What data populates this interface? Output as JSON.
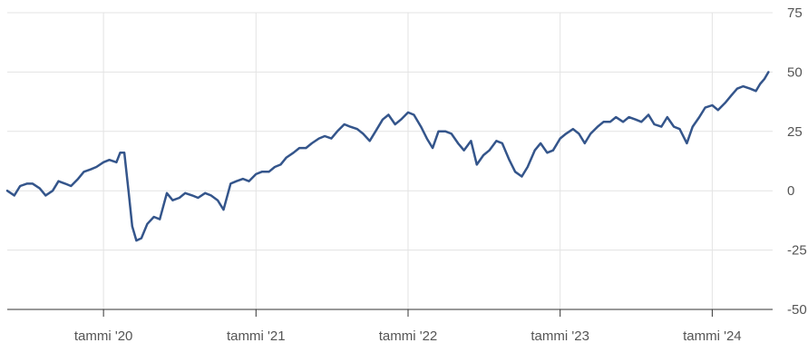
{
  "chart_data": {
    "type": "line",
    "title": "",
    "xlabel": "",
    "ylabel": "",
    "ylim": [
      -50,
      75
    ],
    "y_ticks": [
      75,
      50,
      25,
      0,
      -25,
      -50
    ],
    "y_tick_labels": [
      "75",
      "50",
      "25",
      "0",
      "-25",
      "-50"
    ],
    "y_axis_position": "right",
    "x_ticks": [
      {
        "date": "2020-01-01",
        "label": "tammi '20"
      },
      {
        "date": "2021-01-01",
        "label": "tammi '21"
      },
      {
        "date": "2022-01-01",
        "label": "tammi '22"
      },
      {
        "date": "2023-01-01",
        "label": "tammi '23"
      },
      {
        "date": "2024-01-01",
        "label": "tammi '24"
      }
    ],
    "xlim": [
      "2019-05-15",
      "2024-05-25"
    ],
    "grid": true,
    "legend": "none",
    "colors": {
      "line": "#34558b",
      "grid": "#e3e3e3",
      "axis": "#333333",
      "labels": "#555555"
    },
    "series": [
      {
        "points": [
          [
            "2019-05-15",
            0
          ],
          [
            "2019-06-01",
            -2
          ],
          [
            "2019-06-15",
            2
          ],
          [
            "2019-07-01",
            3
          ],
          [
            "2019-07-15",
            3
          ],
          [
            "2019-08-01",
            1
          ],
          [
            "2019-08-15",
            -2
          ],
          [
            "2019-09-01",
            0
          ],
          [
            "2019-09-15",
            4
          ],
          [
            "2019-10-01",
            3
          ],
          [
            "2019-10-15",
            2
          ],
          [
            "2019-11-01",
            5
          ],
          [
            "2019-11-15",
            8
          ],
          [
            "2019-12-01",
            9
          ],
          [
            "2019-12-15",
            10
          ],
          [
            "2020-01-01",
            12
          ],
          [
            "2020-01-15",
            13
          ],
          [
            "2020-02-01",
            12
          ],
          [
            "2020-02-10",
            16
          ],
          [
            "2020-02-20",
            16
          ],
          [
            "2020-03-01",
            0
          ],
          [
            "2020-03-10",
            -15
          ],
          [
            "2020-03-20",
            -21
          ],
          [
            "2020-04-01",
            -20
          ],
          [
            "2020-04-15",
            -14
          ],
          [
            "2020-05-01",
            -11
          ],
          [
            "2020-05-15",
            -12
          ],
          [
            "2020-06-01",
            -1
          ],
          [
            "2020-06-15",
            -4
          ],
          [
            "2020-07-01",
            -3
          ],
          [
            "2020-07-15",
            -1
          ],
          [
            "2020-08-01",
            -2
          ],
          [
            "2020-08-15",
            -3
          ],
          [
            "2020-09-01",
            -1
          ],
          [
            "2020-09-15",
            -2
          ],
          [
            "2020-10-01",
            -4
          ],
          [
            "2020-10-15",
            -8
          ],
          [
            "2020-11-01",
            3
          ],
          [
            "2020-11-15",
            4
          ],
          [
            "2020-12-01",
            5
          ],
          [
            "2020-12-15",
            4
          ],
          [
            "2021-01-01",
            7
          ],
          [
            "2021-01-15",
            8
          ],
          [
            "2021-02-01",
            8
          ],
          [
            "2021-02-15",
            10
          ],
          [
            "2021-03-01",
            11
          ],
          [
            "2021-03-15",
            14
          ],
          [
            "2021-04-01",
            16
          ],
          [
            "2021-04-15",
            18
          ],
          [
            "2021-05-01",
            18
          ],
          [
            "2021-05-15",
            20
          ],
          [
            "2021-06-01",
            22
          ],
          [
            "2021-06-15",
            23
          ],
          [
            "2021-07-01",
            22
          ],
          [
            "2021-07-15",
            25
          ],
          [
            "2021-08-01",
            28
          ],
          [
            "2021-08-15",
            27
          ],
          [
            "2021-09-01",
            26
          ],
          [
            "2021-09-15",
            24
          ],
          [
            "2021-10-01",
            21
          ],
          [
            "2021-10-15",
            25
          ],
          [
            "2021-11-01",
            30
          ],
          [
            "2021-11-15",
            32
          ],
          [
            "2021-12-01",
            28
          ],
          [
            "2021-12-15",
            30
          ],
          [
            "2022-01-01",
            33
          ],
          [
            "2022-01-15",
            32
          ],
          [
            "2022-02-01",
            27
          ],
          [
            "2022-02-15",
            22
          ],
          [
            "2022-03-01",
            18
          ],
          [
            "2022-03-15",
            25
          ],
          [
            "2022-04-01",
            25
          ],
          [
            "2022-04-15",
            24
          ],
          [
            "2022-05-01",
            20
          ],
          [
            "2022-05-15",
            17
          ],
          [
            "2022-06-01",
            21
          ],
          [
            "2022-06-15",
            11
          ],
          [
            "2022-07-01",
            15
          ],
          [
            "2022-07-15",
            17
          ],
          [
            "2022-08-01",
            21
          ],
          [
            "2022-08-15",
            20
          ],
          [
            "2022-09-01",
            13
          ],
          [
            "2022-09-15",
            8
          ],
          [
            "2022-10-01",
            6
          ],
          [
            "2022-10-15",
            10
          ],
          [
            "2022-11-01",
            17
          ],
          [
            "2022-11-15",
            20
          ],
          [
            "2022-12-01",
            16
          ],
          [
            "2022-12-15",
            17
          ],
          [
            "2023-01-01",
            22
          ],
          [
            "2023-01-15",
            24
          ],
          [
            "2023-02-01",
            26
          ],
          [
            "2023-02-15",
            24
          ],
          [
            "2023-03-01",
            20
          ],
          [
            "2023-03-15",
            24
          ],
          [
            "2023-04-01",
            27
          ],
          [
            "2023-04-15",
            29
          ],
          [
            "2023-05-01",
            29
          ],
          [
            "2023-05-15",
            31
          ],
          [
            "2023-06-01",
            29
          ],
          [
            "2023-06-15",
            31
          ],
          [
            "2023-07-01",
            30
          ],
          [
            "2023-07-15",
            29
          ],
          [
            "2023-08-01",
            32
          ],
          [
            "2023-08-15",
            28
          ],
          [
            "2023-09-01",
            27
          ],
          [
            "2023-09-15",
            31
          ],
          [
            "2023-10-01",
            27
          ],
          [
            "2023-10-15",
            26
          ],
          [
            "2023-11-01",
            20
          ],
          [
            "2023-11-15",
            27
          ],
          [
            "2023-12-01",
            31
          ],
          [
            "2023-12-15",
            35
          ],
          [
            "2024-01-01",
            36
          ],
          [
            "2024-01-15",
            34
          ],
          [
            "2024-02-01",
            37
          ],
          [
            "2024-02-15",
            40
          ],
          [
            "2024-03-01",
            43
          ],
          [
            "2024-03-15",
            44
          ],
          [
            "2024-04-01",
            43
          ],
          [
            "2024-04-15",
            42
          ],
          [
            "2024-04-25",
            45
          ],
          [
            "2024-05-05",
            47
          ],
          [
            "2024-05-15",
            50
          ]
        ]
      }
    ]
  }
}
